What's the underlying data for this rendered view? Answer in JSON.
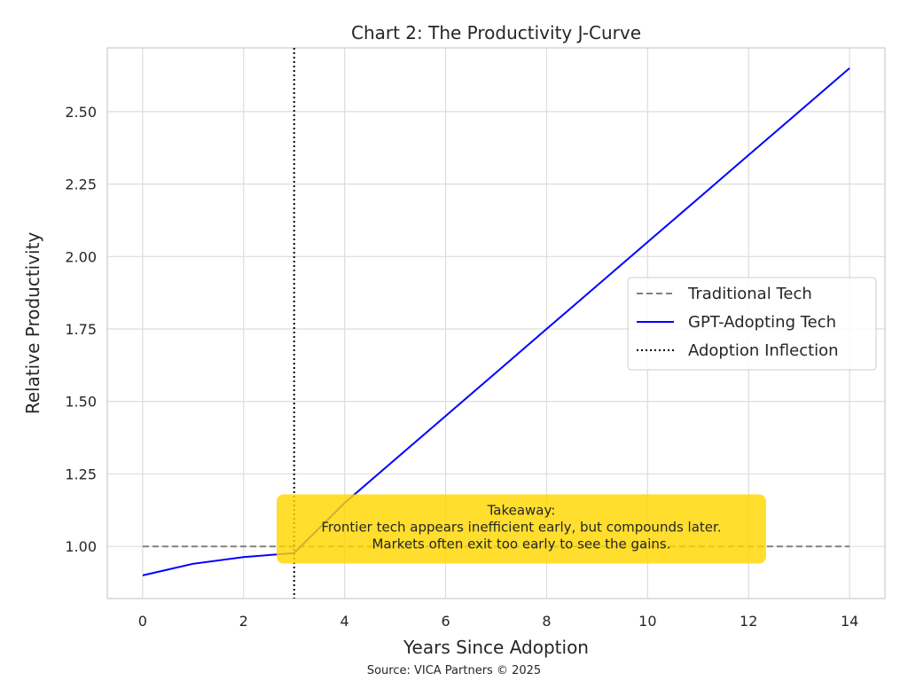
{
  "chart_data": {
    "type": "line",
    "title": "Chart 2: The Productivity J-Curve",
    "xlabel": "Years Since Adoption",
    "ylabel": "Relative Productivity",
    "xlim": [
      -0.7,
      14.7
    ],
    "ylim": [
      0.82,
      2.72
    ],
    "x_ticks": [
      0,
      2,
      4,
      6,
      8,
      10,
      12,
      14
    ],
    "x_tick_labels": [
      "0",
      "2",
      "4",
      "6",
      "8",
      "10",
      "12",
      "14"
    ],
    "y_ticks": [
      1.0,
      1.25,
      1.5,
      1.75,
      2.0,
      2.25,
      2.5
    ],
    "y_tick_labels": [
      "1.00",
      "1.25",
      "1.50",
      "1.75",
      "2.00",
      "2.25",
      "2.50"
    ],
    "grid": true,
    "legend_position": "center-right",
    "series": [
      {
        "name": "Traditional Tech",
        "style": "dashed",
        "color": "#808080",
        "x": [
          0,
          14
        ],
        "y": [
          1.0,
          1.0
        ]
      },
      {
        "name": "GPT-Adopting Tech",
        "style": "solid",
        "color": "#0000ff",
        "x": [
          0,
          1,
          2,
          3,
          4,
          5,
          6,
          7,
          8,
          9,
          10,
          11,
          12,
          13,
          14
        ],
        "y": [
          0.9,
          0.94,
          0.963,
          0.977,
          1.15,
          1.3,
          1.45,
          1.6,
          1.75,
          1.9,
          2.05,
          2.2,
          2.35,
          2.5,
          2.65
        ]
      }
    ],
    "vlines": [
      {
        "name": "Adoption Inflection",
        "x": 3,
        "style": "dotted",
        "color": "#000000"
      }
    ],
    "annotation": {
      "lines": [
        "Takeaway:",
        "Frontier tech appears inefficient early, but compounds later.",
        "Markets often exit too early to see the gains."
      ],
      "x": 7.5,
      "y": 1.06,
      "background": "#FFD700"
    },
    "source": "Source: VICA Partners © 2025"
  }
}
